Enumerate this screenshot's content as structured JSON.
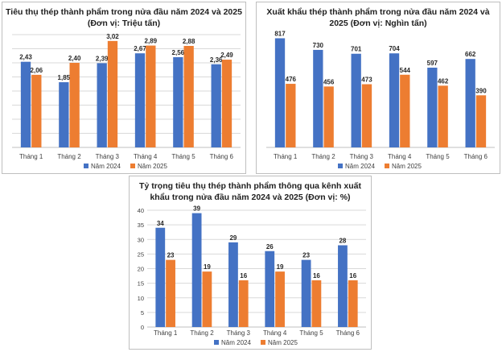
{
  "colors": {
    "series_2024": "#4472C4",
    "series_2025": "#ED7D31",
    "grid": "#d9d9d9",
    "axis": "#bfbfbf",
    "text": "#404040"
  },
  "chart_data": [
    {
      "type": "bar",
      "title": "Tiêu thụ thép thành phẩm trong nửa đầu năm 2024 và 2025 (Đơn vị: Triệu tấn)",
      "categories": [
        "Tháng 1",
        "Tháng 2",
        "Tháng 3",
        "Tháng 4",
        "Tháng 5",
        "Tháng 6"
      ],
      "series": [
        {
          "name": "Năm 2024",
          "values": [
            2.43,
            1.85,
            2.39,
            2.67,
            2.56,
            2.36
          ],
          "labels": [
            "2,43",
            "1,85",
            "2,39",
            "2,67",
            "2,56",
            "2,36"
          ]
        },
        {
          "name": "Năm 2025",
          "values": [
            2.06,
            2.4,
            3.02,
            2.89,
            2.88,
            2.49
          ],
          "labels": [
            "2,06",
            "2,40",
            "3,02",
            "2,89",
            "2,88",
            "2,49"
          ]
        }
      ],
      "ylim": [
        0,
        3.2
      ],
      "grid_lines": 8,
      "show_y_ticks": false,
      "legend": "bottom"
    },
    {
      "type": "bar",
      "title": "Xuất khẩu thép thành phẩm trong nửa đầu năm 2024 và 2025 (Đơn vị: Nghìn tấn)",
      "categories": [
        "Tháng 1",
        "Tháng 2",
        "Tháng 3",
        "Tháng 4",
        "Tháng 5",
        "Tháng 6"
      ],
      "series": [
        {
          "name": "Năm 2024",
          "values": [
            817,
            730,
            701,
            704,
            597,
            662
          ],
          "labels": [
            "817",
            "730",
            "701",
            "704",
            "597",
            "662"
          ]
        },
        {
          "name": "Năm 2025",
          "values": [
            476,
            456,
            473,
            544,
            462,
            390
          ],
          "labels": [
            "476",
            "456",
            "473",
            "544",
            "462",
            "390"
          ]
        }
      ],
      "ylim": [
        0,
        820
      ],
      "grid_lines": 0,
      "show_y_ticks": false,
      "legend": "bottom"
    },
    {
      "type": "bar",
      "title": "Tỷ trọng tiêu thụ thép thành phẩm thông qua kênh xuất khẩu trong nửa đầu năm 2024 và 2025 (Đơn vị: %)",
      "categories": [
        "Tháng 1",
        "Tháng 2",
        "Tháng 3",
        "Tháng 4",
        "Tháng 5",
        "Tháng 6"
      ],
      "series": [
        {
          "name": "Năm 2024",
          "values": [
            34,
            39,
            29,
            26,
            23,
            28
          ],
          "labels": [
            "34",
            "39",
            "29",
            "26",
            "23",
            "28"
          ]
        },
        {
          "name": "Năm 2025",
          "values": [
            23,
            19,
            16,
            19,
            16,
            16
          ],
          "labels": [
            "23",
            "19",
            "16",
            "19",
            "16",
            "16"
          ]
        }
      ],
      "ylim": [
        0,
        40
      ],
      "y_ticks": [
        "0",
        "5",
        "10",
        "15",
        "20",
        "25",
        "30",
        "35",
        "40"
      ],
      "grid_lines": 8,
      "show_y_ticks": true,
      "legend": "bottom"
    }
  ]
}
